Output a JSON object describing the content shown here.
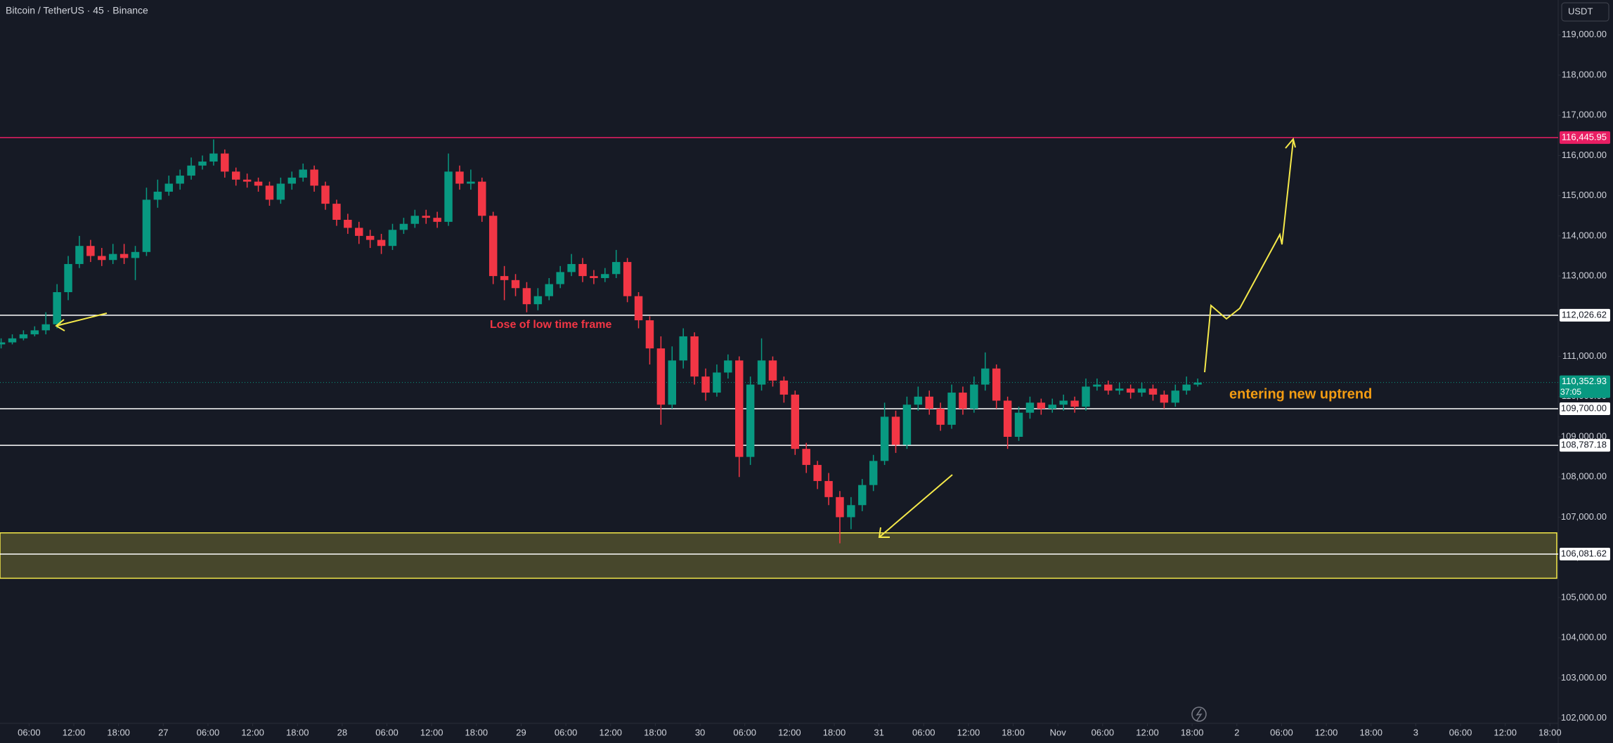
{
  "chart_data": {
    "type": "candlestick",
    "title": "Bitcoin / TetherUS · 45 · Binance",
    "currency": "USDT",
    "up_color": "#089981",
    "down_color": "#f23645",
    "grid": false,
    "x": [
      2.25,
      3.75,
      5.25,
      6.75,
      8.25,
      9.75,
      11.25,
      12.75,
      14.25,
      15.75,
      17.25,
      18.75,
      20.25,
      21.75,
      23.25,
      24.75,
      26.25,
      27.75,
      29.25,
      30.75,
      32.25,
      33.75,
      35.25,
      36.75,
      38.25,
      39.75,
      41.25,
      42.75,
      44.25,
      45.75,
      47.25,
      48.75,
      50.25,
      51.75,
      53.25,
      54.75,
      56.25,
      57.75,
      59.25,
      60.75,
      62.25,
      63.75,
      65.25,
      66.75,
      68.25,
      69.75,
      71.25,
      72.75,
      74.25,
      75.75,
      77.25,
      78.75,
      80.25,
      81.75,
      83.25,
      84.75,
      86.25,
      87.75,
      89.25,
      90.75,
      92.25,
      93.75,
      95.25,
      96.75,
      98.25,
      99.75,
      101.25,
      102.75,
      104.25,
      105.75,
      107.25,
      108.75,
      110.25,
      111.75,
      113.25,
      114.75,
      116.25,
      117.75,
      119.25,
      120.75,
      122.25,
      123.75,
      125.25,
      126.75,
      128.25,
      129.75,
      131.25,
      132.75,
      134.25,
      135.75,
      137.25,
      138.75,
      140.25,
      141.75,
      143.25,
      144.75,
      146.25,
      147.75,
      149.25,
      150.75,
      152.25,
      153.75,
      155.25,
      156.75,
      158.25,
      159.75,
      161.25,
      162.75
    ],
    "open": [
      111300,
      111350,
      111450,
      111550,
      111650,
      111800,
      112600,
      113300,
      113750,
      113500,
      113400,
      113550,
      113450,
      113600,
      114900,
      115100,
      115300,
      115500,
      115750,
      115850,
      116050,
      115600,
      115400,
      115350,
      115250,
      114900,
      115300,
      115450,
      115650,
      115250,
      114800,
      114400,
      114200,
      114000,
      113900,
      113750,
      114150,
      114300,
      114500,
      114450,
      114350,
      115600,
      115300,
      115350,
      114500,
      113000,
      112900,
      112700,
      112300,
      112500,
      112800,
      113100,
      113300,
      113000,
      112950,
      113050,
      113350,
      112500,
      111900,
      111200,
      109800,
      110900,
      111500,
      110500,
      110100,
      110600,
      110900,
      108500,
      110300,
      110900,
      110400,
      110050,
      108700,
      108300,
      107900,
      107500,
      107000,
      107300,
      107800,
      108400,
      109500,
      108800,
      109800,
      110000,
      109700,
      109300,
      110100,
      109700,
      110300,
      110700,
      109900,
      109000,
      109600,
      109850,
      109700,
      109800,
      109900,
      109750,
      110250,
      110300,
      110150,
      110200,
      110100,
      110200,
      110050,
      109850,
      110150,
      110300
    ],
    "high": [
      111450,
      111550,
      111650,
      111750,
      112100,
      112800,
      113500,
      114000,
      113900,
      113700,
      113800,
      113800,
      113750,
      115200,
      115400,
      115500,
      115650,
      115950,
      116000,
      116400,
      116150,
      115700,
      115550,
      115450,
      115350,
      115450,
      115600,
      115800,
      115750,
      115350,
      114900,
      114550,
      114350,
      114150,
      114050,
      114300,
      114450,
      114650,
      114650,
      114600,
      116050,
      115750,
      115650,
      115450,
      114600,
      113250,
      113050,
      112850,
      112700,
      112950,
      113250,
      113550,
      113450,
      113150,
      113200,
      113650,
      113450,
      112600,
      112000,
      111500,
      111250,
      111700,
      111600,
      110700,
      110800,
      111050,
      111000,
      110500,
      111450,
      111000,
      110500,
      110150,
      108850,
      108400,
      108100,
      107650,
      107500,
      107950,
      108550,
      109850,
      109650,
      110000,
      110250,
      110150,
      109850,
      110300,
      110250,
      110500,
      111100,
      110800,
      110000,
      109750,
      110000,
      109950,
      109950,
      110050,
      110000,
      110450,
      110450,
      110400,
      110350,
      110300,
      110350,
      110300,
      110150,
      110300,
      110500,
      110450
    ],
    "low": [
      111200,
      111300,
      111400,
      111500,
      111550,
      111700,
      112400,
      113200,
      113350,
      113250,
      113300,
      113300,
      112900,
      113500,
      114700,
      115000,
      115150,
      115400,
      115650,
      115750,
      115450,
      115250,
      115200,
      115100,
      114750,
      114800,
      115150,
      115350,
      115100,
      114650,
      114250,
      114050,
      113800,
      113700,
      113550,
      113650,
      114050,
      114200,
      114300,
      114200,
      114250,
      115150,
      115150,
      114350,
      112800,
      112400,
      112500,
      112100,
      112150,
      112400,
      112700,
      113000,
      112850,
      112800,
      112850,
      112950,
      112350,
      111700,
      110800,
      109300,
      109700,
      110700,
      110300,
      109900,
      110000,
      110450,
      108000,
      108300,
      110150,
      110250,
      109850,
      108550,
      108100,
      107700,
      107300,
      106350,
      106700,
      107150,
      107650,
      108300,
      108600,
      108700,
      109650,
      109550,
      109150,
      109200,
      109550,
      109600,
      110150,
      109700,
      108700,
      108900,
      109450,
      109550,
      109600,
      109650,
      109600,
      109650,
      110150,
      110050,
      110050,
      109950,
      110000,
      109900,
      109700,
      109750,
      110050,
      110250
    ],
    "close": [
      111350,
      111450,
      111550,
      111650,
      111800,
      112600,
      113300,
      113750,
      113500,
      113400,
      113550,
      113450,
      113600,
      114900,
      115100,
      115300,
      115500,
      115750,
      115850,
      116050,
      115600,
      115400,
      115350,
      115250,
      114900,
      115300,
      115450,
      115650,
      115250,
      114800,
      114400,
      114200,
      114000,
      113900,
      113750,
      114150,
      114300,
      114500,
      114450,
      114350,
      115600,
      115300,
      115350,
      114500,
      113000,
      112900,
      112700,
      112300,
      112500,
      112800,
      113100,
      113300,
      113000,
      112950,
      113050,
      113350,
      112500,
      111900,
      111200,
      109800,
      110900,
      111500,
      110500,
      110100,
      110600,
      110900,
      108500,
      110300,
      110900,
      110400,
      110050,
      108700,
      108300,
      107900,
      107500,
      107000,
      107300,
      107800,
      108400,
      109500,
      108800,
      109800,
      110000,
      109700,
      109300,
      110100,
      109700,
      110300,
      110700,
      109900,
      109000,
      109600,
      109850,
      109700,
      109800,
      109900,
      109750,
      110250,
      110300,
      110150,
      110200,
      110100,
      110200,
      110050,
      109850,
      110150,
      110300,
      110350
    ],
    "xlim": [
      2.1,
      211.1
    ],
    "ylim": [
      101870,
      119870
    ],
    "xticks": [
      {
        "value": 6,
        "label": "06:00"
      },
      {
        "value": 12,
        "label": "12:00"
      },
      {
        "value": 18,
        "label": "18:00"
      },
      {
        "value": 24,
        "label": "27"
      },
      {
        "value": 30,
        "label": "06:00"
      },
      {
        "value": 36,
        "label": "12:00"
      },
      {
        "value": 42,
        "label": "18:00"
      },
      {
        "value": 48,
        "label": "28"
      },
      {
        "value": 54,
        "label": "06:00"
      },
      {
        "value": 60,
        "label": "12:00"
      },
      {
        "value": 66,
        "label": "18:00"
      },
      {
        "value": 72,
        "label": "29"
      },
      {
        "value": 78,
        "label": "06:00"
      },
      {
        "value": 84,
        "label": "12:00"
      },
      {
        "value": 90,
        "label": "18:00"
      },
      {
        "value": 96,
        "label": "30"
      },
      {
        "value": 102,
        "label": "06:00"
      },
      {
        "value": 108,
        "label": "12:00"
      },
      {
        "value": 114,
        "label": "18:00"
      },
      {
        "value": 120,
        "label": "31"
      },
      {
        "value": 126,
        "label": "06:00"
      },
      {
        "value": 132,
        "label": "12:00"
      },
      {
        "value": 138,
        "label": "18:00"
      },
      {
        "value": 144,
        "label": "Nov"
      },
      {
        "value": 150,
        "label": "06:00"
      },
      {
        "value": 156,
        "label": "12:00"
      },
      {
        "value": 162,
        "label": "18:00"
      },
      {
        "value": 168,
        "label": "2"
      },
      {
        "value": 174,
        "label": "06:00"
      },
      {
        "value": 180,
        "label": "12:00"
      },
      {
        "value": 186,
        "label": "18:00"
      },
      {
        "value": 192,
        "label": "3"
      },
      {
        "value": 198,
        "label": "06:00"
      },
      {
        "value": 204,
        "label": "12:00"
      },
      {
        "value": 210,
        "label": "18:00"
      }
    ],
    "yticks": [
      {
        "value": 102000,
        "label": "102,000.00"
      },
      {
        "value": 103000,
        "label": "103,000.00"
      },
      {
        "value": 104000,
        "label": "104,000.00"
      },
      {
        "value": 105000,
        "label": "105,000.00"
      },
      {
        "value": 106000,
        "label": "106,000.00"
      },
      {
        "value": 107000,
        "label": "107,000.00"
      },
      {
        "value": 108000,
        "label": "108,000.00"
      },
      {
        "value": 109000,
        "label": "109,000.00"
      },
      {
        "value": 110000,
        "label": "110,000.00"
      },
      {
        "value": 111000,
        "label": "111,000.00"
      },
      {
        "value": 112000,
        "label": "112,000.00"
      },
      {
        "value": 113000,
        "label": "113,000.00"
      },
      {
        "value": 114000,
        "label": "114,000.00"
      },
      {
        "value": 115000,
        "label": "115,000.00"
      },
      {
        "value": 116000,
        "label": "116,000.00"
      },
      {
        "value": 117000,
        "label": "117,000.00"
      },
      {
        "value": 118000,
        "label": "118,000.00"
      },
      {
        "value": 119000,
        "label": "119,000.00"
      }
    ],
    "levels": [
      {
        "value": 116445.95,
        "label": "116,445.95",
        "color": "#e91e63"
      },
      {
        "value": 112026.62,
        "label": "112,026.62",
        "color": "#ffffff"
      },
      {
        "value": 109700,
        "label": "109,700.00",
        "color": "#ffffff"
      },
      {
        "value": 108787.18,
        "label": "108,787.18",
        "color": "#ffffff"
      },
      {
        "value": 106081.62,
        "label": "106,081.62",
        "color": "#ffffff"
      }
    ],
    "zone": {
      "from": 105480,
      "to": 106610,
      "color": "#f5e94a"
    },
    "current_price": {
      "value": 110352.93,
      "label": "110,352.93",
      "countdown": "37:05",
      "color": "#089981"
    },
    "annotations": [
      {
        "text": "Lose of low time frame",
        "color": "#f23645"
      },
      {
        "text": "entering new uptrend",
        "color": "#f39c12"
      }
    ]
  }
}
